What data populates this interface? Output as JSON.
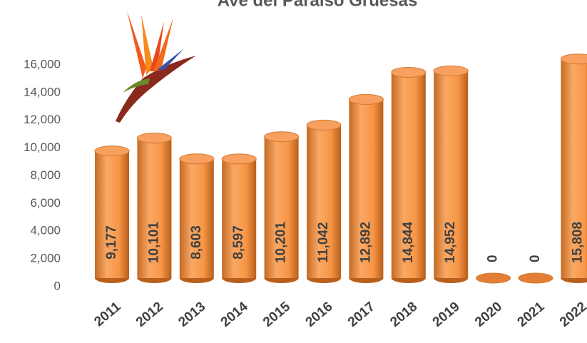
{
  "chart_data": {
    "type": "cylinder-bar",
    "title": "Ave del Paraíso Gruesas",
    "categories": [
      "2011",
      "2012",
      "2013",
      "2014",
      "2015",
      "2016",
      "2017",
      "2018",
      "2019",
      "2020",
      "2021",
      "2022"
    ],
    "values": [
      9177,
      10101,
      8603,
      8597,
      10201,
      11042,
      12892,
      14844,
      14952,
      0,
      0,
      15808
    ],
    "value_labels": [
      "9,177",
      "10,101",
      "8,603",
      "8,597",
      "10,201",
      "11,042",
      "12,892",
      "14,844",
      "14,952",
      "0",
      "0",
      "15,808"
    ],
    "color": "#f79646",
    "ylim": [
      0,
      16000
    ],
    "yticks": [
      0,
      {
        "value": 2000,
        "label": "2,000"
      },
      {
        "value": 4000,
        "label": "4,000"
      },
      {
        "value": 6000,
        "label": "6,000"
      },
      {
        "value": 8000,
        "label": "8,000"
      },
      {
        "value": 10000,
        "label": "10,000"
      },
      {
        "value": 12000,
        "label": "12,000"
      },
      {
        "value": 14000,
        "label": "14,000"
      },
      {
        "value": 16000,
        "label": "16,000"
      }
    ],
    "grid": false
  }
}
